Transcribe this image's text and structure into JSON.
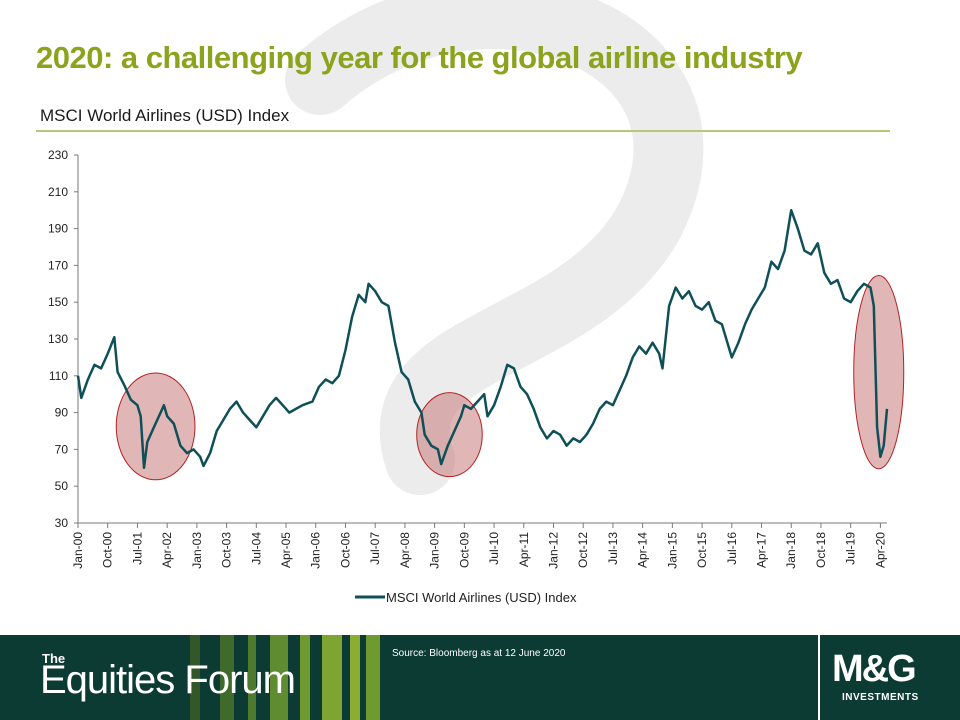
{
  "slide": {
    "title": "2020: a challenging year for the global airline industry",
    "subtitle": "MSCI World Airlines (USD) Index"
  },
  "footer": {
    "brand_prefix": "The",
    "brand_name": "Equities Forum",
    "source": "Source: Bloomberg as at 12 June 2020",
    "logo_main": "M&G",
    "logo_sub": "INVESTMENTS"
  },
  "colors": {
    "title": "#8ba31d",
    "line": "#0f5058",
    "highlight_fill": "#c97a7a",
    "highlight_stroke": "#b22222",
    "footer_bg": "#0b3b33"
  },
  "chart_data": {
    "type": "line",
    "title": "MSCI World Airlines (USD) Index",
    "xlabel": "",
    "ylabel": "",
    "ylim": [
      30,
      230
    ],
    "yticks": [
      30,
      50,
      70,
      90,
      110,
      130,
      150,
      170,
      190,
      210,
      230
    ],
    "x_start": "Jan-00",
    "x_end": "Jun-20",
    "x_tick_labels": [
      "Jan-00",
      "Oct-00",
      "Jul-01",
      "Apr-02",
      "Jan-03",
      "Oct-03",
      "Jul-04",
      "Apr-05",
      "Jan-06",
      "Oct-06",
      "Jul-07",
      "Apr-08",
      "Jan-09",
      "Oct-09",
      "Jul-10",
      "Apr-11",
      "Jan-12",
      "Oct-12",
      "Jul-13",
      "Apr-14",
      "Jan-15",
      "Oct-15",
      "Jul-16",
      "Apr-17",
      "Jan-18",
      "Oct-18",
      "Jul-19",
      "Apr-20"
    ],
    "legend": {
      "position": "bottom",
      "label": "MSCI World Airlines (USD) Index"
    },
    "grid": false,
    "series": [
      {
        "name": "MSCI World Airlines (USD) Index",
        "points": [
          [
            "2000-01",
            110
          ],
          [
            "2000-02",
            98
          ],
          [
            "2000-04",
            108
          ],
          [
            "2000-06",
            116
          ],
          [
            "2000-08",
            114
          ],
          [
            "2000-10",
            122
          ],
          [
            "2000-12",
            131
          ],
          [
            "2001-01",
            112
          ],
          [
            "2001-03",
            105
          ],
          [
            "2001-05",
            97
          ],
          [
            "2001-07",
            94
          ],
          [
            "2001-08",
            88
          ],
          [
            "2001-09",
            60
          ],
          [
            "2001-10",
            74
          ],
          [
            "2001-12",
            82
          ],
          [
            "2002-02",
            90
          ],
          [
            "2002-03",
            94
          ],
          [
            "2002-04",
            88
          ],
          [
            "2002-06",
            84
          ],
          [
            "2002-08",
            72
          ],
          [
            "2002-10",
            68
          ],
          [
            "2002-12",
            70
          ],
          [
            "2003-02",
            66
          ],
          [
            "2003-03",
            61
          ],
          [
            "2003-05",
            68
          ],
          [
            "2003-07",
            80
          ],
          [
            "2003-09",
            86
          ],
          [
            "2003-11",
            92
          ],
          [
            "2004-01",
            96
          ],
          [
            "2004-03",
            90
          ],
          [
            "2004-05",
            86
          ],
          [
            "2004-07",
            82
          ],
          [
            "2004-09",
            88
          ],
          [
            "2004-11",
            94
          ],
          [
            "2005-01",
            98
          ],
          [
            "2005-03",
            94
          ],
          [
            "2005-05",
            90
          ],
          [
            "2005-07",
            92
          ],
          [
            "2005-09",
            94
          ],
          [
            "2005-12",
            96
          ],
          [
            "2006-02",
            104
          ],
          [
            "2006-04",
            108
          ],
          [
            "2006-06",
            106
          ],
          [
            "2006-08",
            110
          ],
          [
            "2006-10",
            124
          ],
          [
            "2006-12",
            142
          ],
          [
            "2007-02",
            154
          ],
          [
            "2007-04",
            150
          ],
          [
            "2007-05",
            160
          ],
          [
            "2007-07",
            156
          ],
          [
            "2007-09",
            150
          ],
          [
            "2007-11",
            148
          ],
          [
            "2008-01",
            128
          ],
          [
            "2008-03",
            112
          ],
          [
            "2008-05",
            108
          ],
          [
            "2008-07",
            96
          ],
          [
            "2008-09",
            90
          ],
          [
            "2008-10",
            78
          ],
          [
            "2008-12",
            72
          ],
          [
            "2009-02",
            70
          ],
          [
            "2009-03",
            62
          ],
          [
            "2009-05",
            72
          ],
          [
            "2009-07",
            80
          ],
          [
            "2009-09",
            88
          ],
          [
            "2009-10",
            94
          ],
          [
            "2009-12",
            92
          ],
          [
            "2010-02",
            96
          ],
          [
            "2010-04",
            100
          ],
          [
            "2010-05",
            88
          ],
          [
            "2010-07",
            94
          ],
          [
            "2010-09",
            104
          ],
          [
            "2010-11",
            116
          ],
          [
            "2011-01",
            114
          ],
          [
            "2011-03",
            104
          ],
          [
            "2011-05",
            100
          ],
          [
            "2011-07",
            92
          ],
          [
            "2011-09",
            82
          ],
          [
            "2011-11",
            76
          ],
          [
            "2012-01",
            80
          ],
          [
            "2012-03",
            78
          ],
          [
            "2012-05",
            72
          ],
          [
            "2012-07",
            76
          ],
          [
            "2012-09",
            74
          ],
          [
            "2012-11",
            78
          ],
          [
            "2013-01",
            84
          ],
          [
            "2013-03",
            92
          ],
          [
            "2013-05",
            96
          ],
          [
            "2013-07",
            94
          ],
          [
            "2013-09",
            102
          ],
          [
            "2013-11",
            110
          ],
          [
            "2014-01",
            120
          ],
          [
            "2014-03",
            126
          ],
          [
            "2014-05",
            122
          ],
          [
            "2014-07",
            128
          ],
          [
            "2014-09",
            122
          ],
          [
            "2014-10",
            114
          ],
          [
            "2014-12",
            148
          ],
          [
            "2015-02",
            158
          ],
          [
            "2015-04",
            152
          ],
          [
            "2015-06",
            156
          ],
          [
            "2015-08",
            148
          ],
          [
            "2015-10",
            146
          ],
          [
            "2015-12",
            150
          ],
          [
            "2016-02",
            140
          ],
          [
            "2016-04",
            138
          ],
          [
            "2016-06",
            126
          ],
          [
            "2016-07",
            120
          ],
          [
            "2016-09",
            128
          ],
          [
            "2016-11",
            138
          ],
          [
            "2017-01",
            146
          ],
          [
            "2017-03",
            152
          ],
          [
            "2017-05",
            158
          ],
          [
            "2017-07",
            172
          ],
          [
            "2017-09",
            168
          ],
          [
            "2017-11",
            178
          ],
          [
            "2018-01",
            200
          ],
          [
            "2018-03",
            190
          ],
          [
            "2018-05",
            178
          ],
          [
            "2018-07",
            176
          ],
          [
            "2018-09",
            182
          ],
          [
            "2018-11",
            166
          ],
          [
            "2019-01",
            160
          ],
          [
            "2019-03",
            162
          ],
          [
            "2019-05",
            152
          ],
          [
            "2019-07",
            150
          ],
          [
            "2019-09",
            156
          ],
          [
            "2019-11",
            160
          ],
          [
            "2020-01",
            158
          ],
          [
            "2020-02",
            148
          ],
          [
            "2020-03",
            82
          ],
          [
            "2020-04",
            66
          ],
          [
            "2020-05",
            72
          ],
          [
            "2020-06",
            92
          ]
        ]
      }
    ],
    "highlighted_periods": [
      {
        "from": "2001-03",
        "to": "2002-10"
      },
      {
        "from": "2008-10",
        "to": "2010-01"
      },
      {
        "from": "2020-01",
        "to": "2020-06"
      }
    ]
  }
}
